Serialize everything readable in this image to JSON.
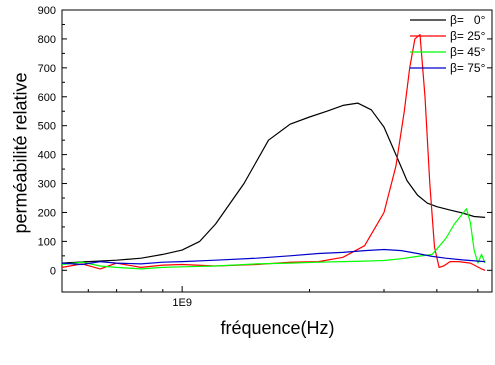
{
  "chart_data": {
    "type": "line",
    "xlabel": "fréquence(Hz)",
    "ylabel": "perméabilité relative",
    "x_scale": "log",
    "xlim": [
      520000000,
      5400000000
    ],
    "ylim": [
      -75,
      900
    ],
    "y_ticks": [
      0,
      100,
      200,
      300,
      400,
      500,
      600,
      700,
      800,
      900
    ],
    "x_tick_labels": [
      {
        "value": 1000000000,
        "label": "1E9"
      }
    ],
    "grid": false,
    "legend_position": "top-right",
    "series": [
      {
        "name": "β=   0°",
        "color": "#000000",
        "x": [
          520000000,
          600000000,
          700000000,
          800000000,
          900000000,
          1000000000,
          1100000000,
          1200000000,
          1400000000,
          1600000000,
          1800000000,
          2000000000,
          2200000000,
          2400000000,
          2600000000,
          2800000000,
          3000000000,
          3200000000,
          3400000000,
          3600000000,
          3800000000,
          4000000000,
          4300000000,
          4600000000,
          4900000000,
          5200000000
        ],
        "y": [
          25,
          30,
          35,
          42,
          55,
          70,
          100,
          160,
          300,
          450,
          505,
          530,
          550,
          570,
          578,
          555,
          495,
          400,
          310,
          260,
          232,
          220,
          208,
          198,
          186,
          183
        ]
      },
      {
        "name": "β= 25°",
        "color": "#ff0000",
        "x": [
          520000000,
          580000000,
          640000000,
          700000000,
          800000000,
          900000000,
          1000000000,
          1200000000,
          1500000000,
          1800000000,
          2100000000,
          2400000000,
          2700000000,
          3000000000,
          3200000000,
          3350000000,
          3450000000,
          3550000000,
          3650000000,
          3750000000,
          3850000000,
          3950000000,
          4050000000,
          4150000000,
          4300000000,
          4500000000,
          4800000000,
          5100000000,
          5200000000
        ],
        "y": [
          10,
          22,
          5,
          25,
          10,
          18,
          20,
          15,
          20,
          28,
          30,
          45,
          85,
          200,
          360,
          550,
          700,
          800,
          815,
          600,
          300,
          80,
          10,
          15,
          30,
          30,
          25,
          5,
          0
        ]
      },
      {
        "name": "β= 45°",
        "color": "#00ff00",
        "x": [
          520000000,
          580000000,
          640000000,
          700000000,
          800000000,
          900000000,
          1000000000,
          1200000000,
          1500000000,
          1800000000,
          2100000000,
          2400000000,
          2700000000,
          3000000000,
          3300000000,
          3600000000,
          3900000000,
          4200000000,
          4400000000,
          4600000000,
          4700000000,
          4800000000,
          4900000000,
          5000000000,
          5100000000,
          5200000000
        ],
        "y": [
          20,
          28,
          15,
          10,
          5,
          10,
          12,
          15,
          22,
          25,
          28,
          30,
          32,
          34,
          40,
          48,
          55,
          110,
          160,
          195,
          213,
          165,
          70,
          25,
          55,
          25
        ]
      },
      {
        "name": "β= 75°",
        "color": "#0000cc",
        "x": [
          520000000,
          580000000,
          640000000,
          700000000,
          800000000,
          900000000,
          1000000000,
          1200000000,
          1500000000,
          1800000000,
          2100000000,
          2400000000,
          2700000000,
          3000000000,
          3300000000,
          3600000000,
          3900000000,
          4200000000,
          4600000000,
          5000000000,
          5200000000
        ],
        "y": [
          25,
          20,
          30,
          25,
          22,
          28,
          30,
          35,
          42,
          50,
          58,
          62,
          68,
          72,
          68,
          58,
          48,
          42,
          36,
          32,
          30
        ]
      }
    ]
  }
}
